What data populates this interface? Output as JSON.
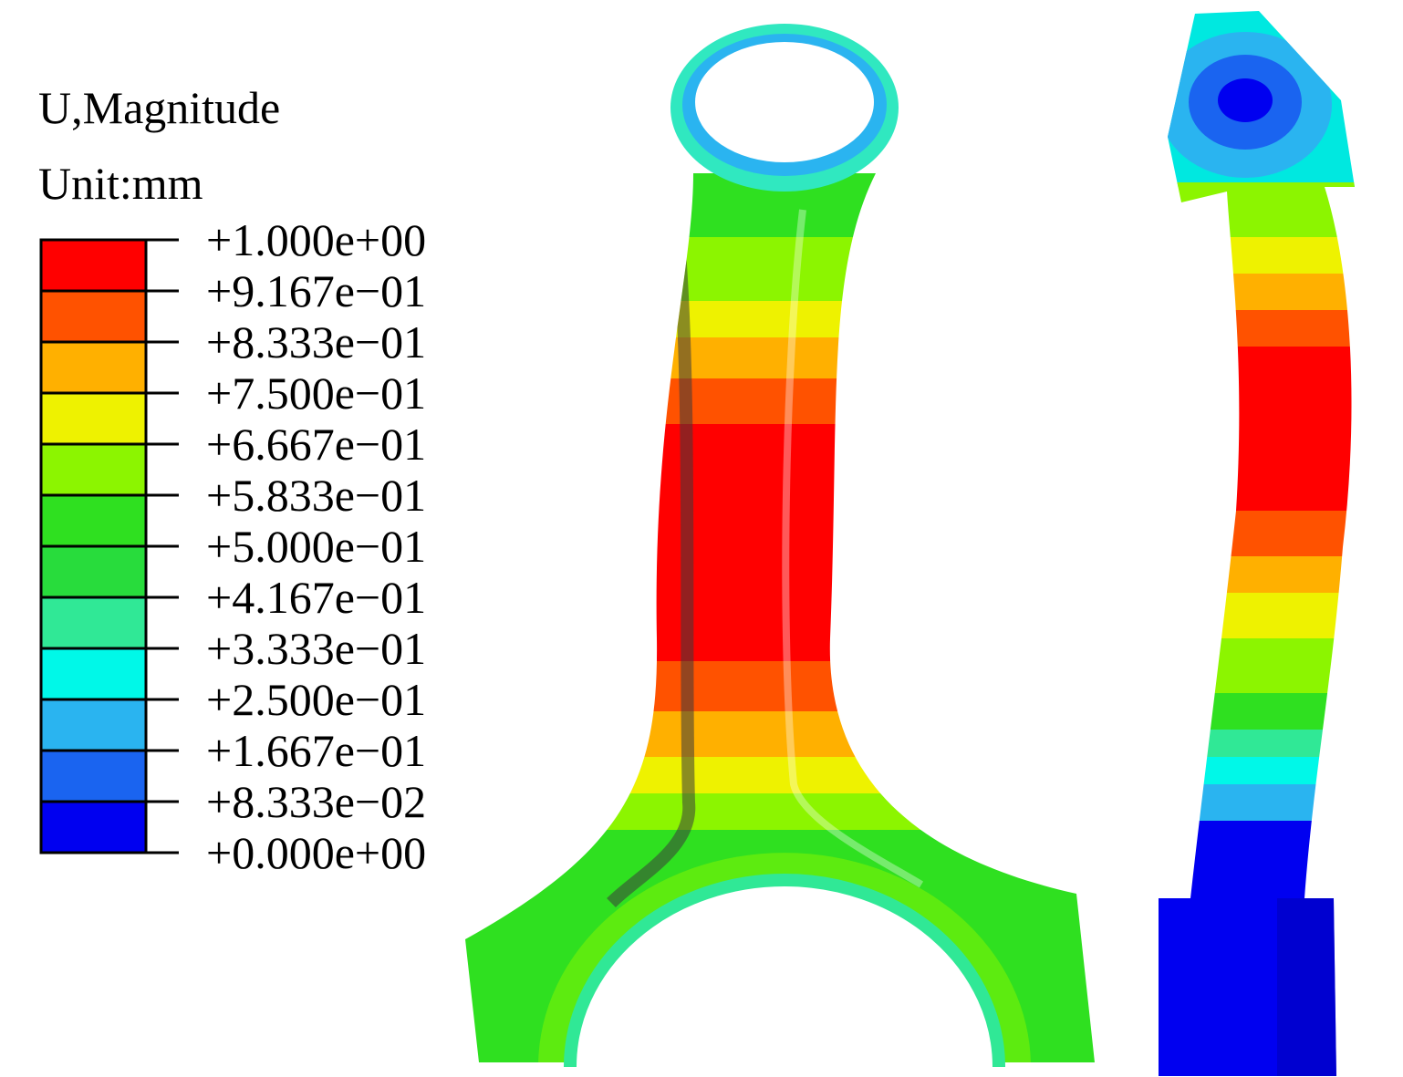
{
  "legend": {
    "title": "U,Magnitude",
    "unit": "Unit:mm",
    "labels": [
      "+1.000e+00",
      "+9.167e−01",
      "+8.333e−01",
      "+7.500e−01",
      "+6.667e−01",
      "+5.833e−01",
      "+5.000e−01",
      "+4.167e−01",
      "+3.333e−01",
      "+2.500e−01",
      "+1.667e−01",
      "+8.333e−02",
      "+0.000e+00"
    ],
    "colors": [
      "#ff0000",
      "#ff5200",
      "#ffb000",
      "#eef200",
      "#8cf500",
      "#2fe020",
      "#28dc3c",
      "#30e896",
      "#00f8e8",
      "#2ab4f0",
      "#1a64f0",
      "#0000f0"
    ]
  }
}
